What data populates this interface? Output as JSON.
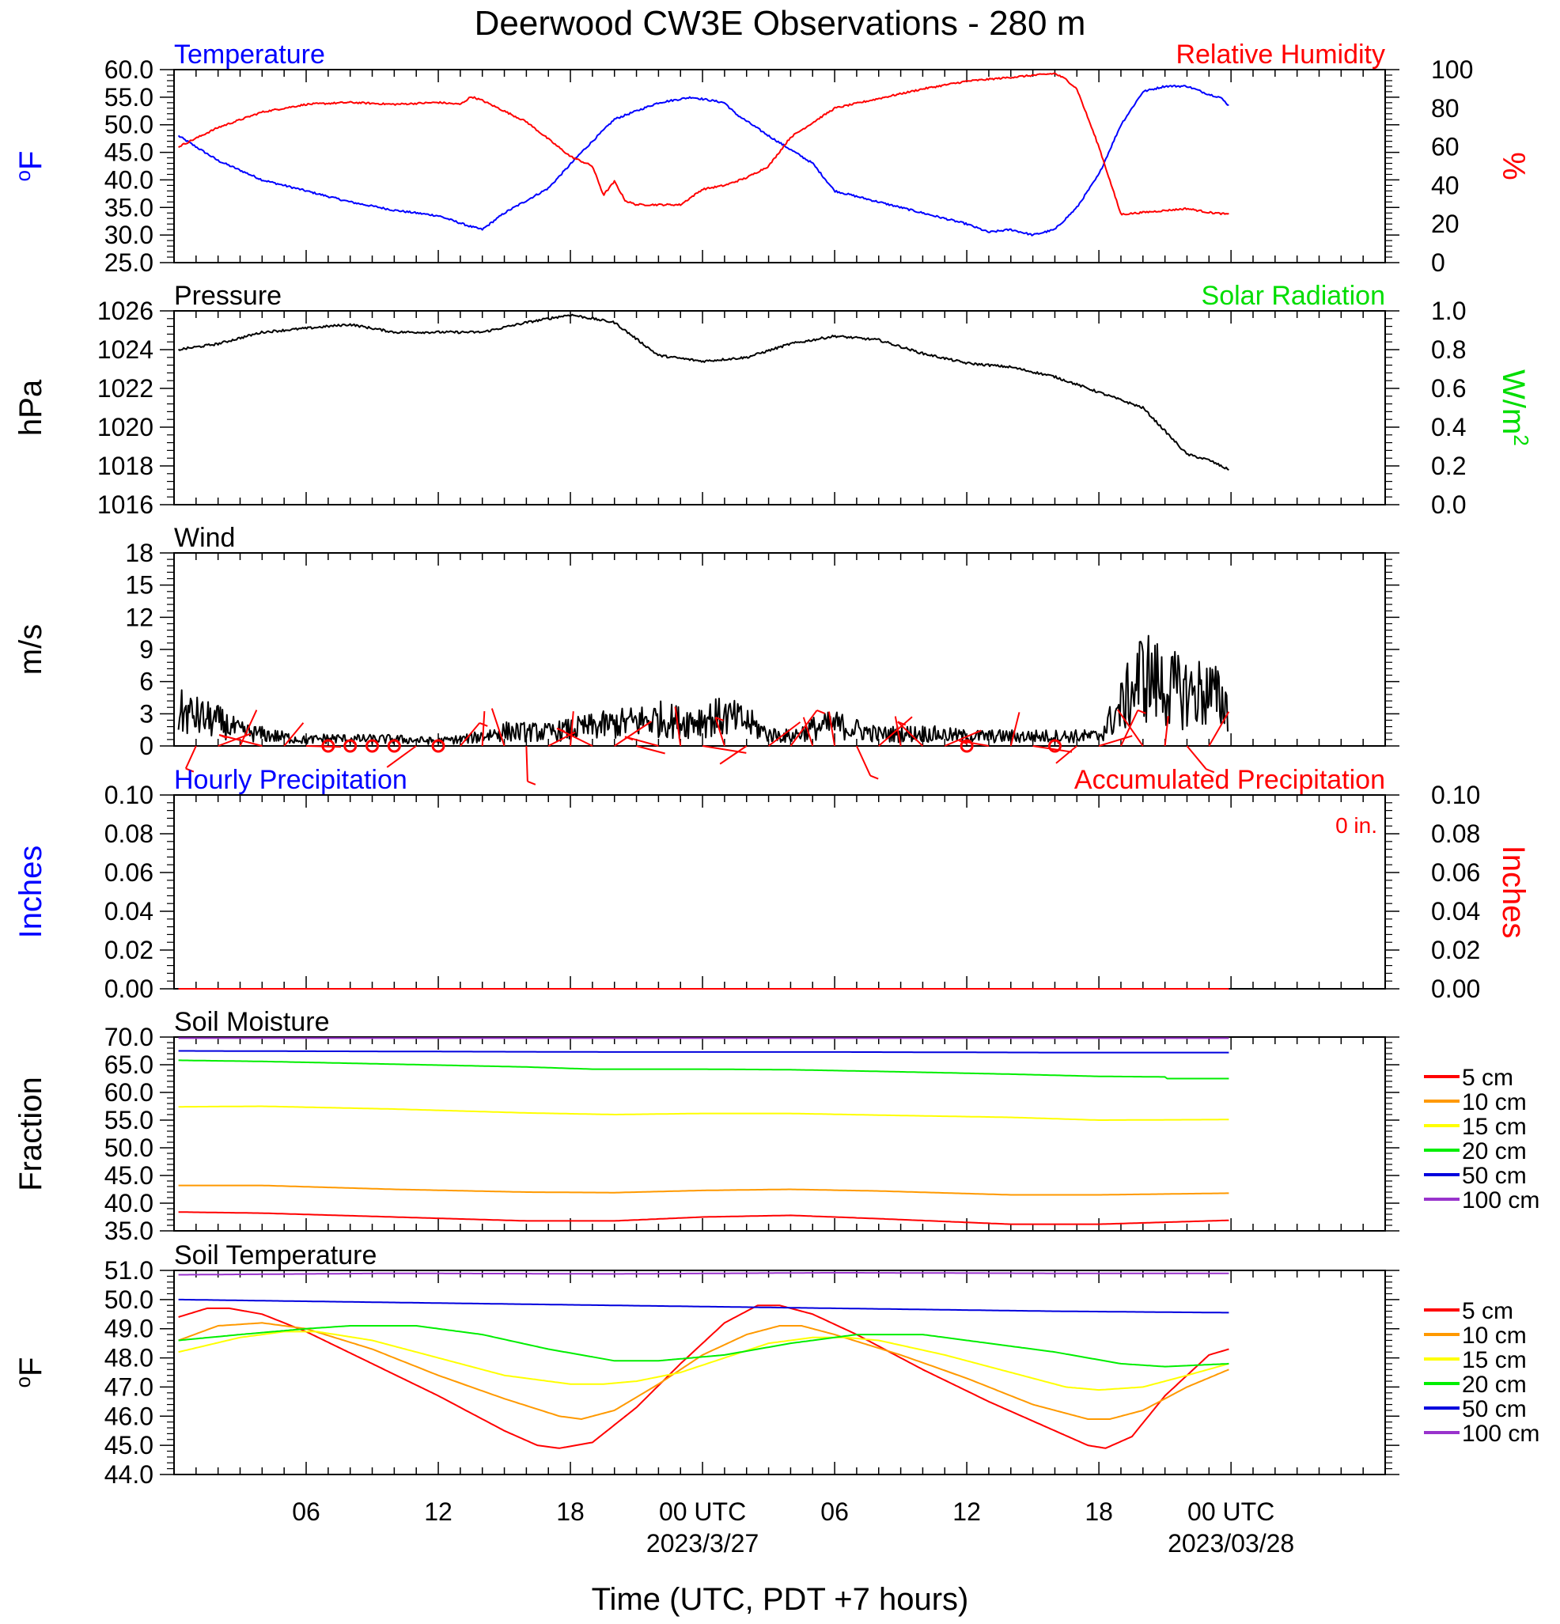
{
  "figure": {
    "title": "Deerwood CW3E Observations - 280 m",
    "xlabel": "Time (UTC, PDT +7 hours)",
    "x_range_hours": [
      -30,
      25
    ],
    "x_ticks": [
      {
        "hour": -24,
        "label": "06",
        "sub": ""
      },
      {
        "hour": -18,
        "label": "12",
        "sub": ""
      },
      {
        "hour": -12,
        "label": "18",
        "sub": ""
      },
      {
        "hour": -6,
        "label": "00 UTC",
        "sub": "2023/3/27"
      },
      {
        "hour": 0,
        "label": "06",
        "sub": ""
      },
      {
        "hour": 6,
        "label": "12",
        "sub": ""
      },
      {
        "hour": 12,
        "label": "18",
        "sub": ""
      },
      {
        "hour": 18,
        "label": "00 UTC",
        "sub": "2023/03/28"
      }
    ]
  },
  "colors": {
    "temperature": "#0000ff",
    "humidity": "#ff0000",
    "pressure": "#000000",
    "solar": "#00dd00",
    "wind": "#000000",
    "barb": "#ff0000",
    "depth_5cm": "#ff0000",
    "depth_10cm": "#ff9900",
    "depth_15cm": "#ffff00",
    "depth_20cm": "#00ee00",
    "depth_50cm": "#0000dd",
    "depth_100cm": "#9933cc"
  },
  "chart_data": [
    {
      "id": "temp_rh",
      "type": "line",
      "left_title": "Temperature",
      "right_title": "Relative Humidity",
      "ylabel_left": "°F",
      "ylabel_right": "%",
      "ylim_left": [
        25,
        60
      ],
      "yticks_left": [
        "25.0",
        "30.0",
        "35.0",
        "40.0",
        "45.0",
        "50.0",
        "55.0",
        "60.0"
      ],
      "ylim_right": [
        0,
        100
      ],
      "yticks_right": [
        "0",
        "20",
        "40",
        "60",
        "80",
        "100"
      ],
      "series": [
        {
          "name": "Temperature",
          "axis": "left",
          "color": "#0000ff",
          "x": [
            -29.8,
            -28,
            -26,
            -24,
            -22,
            -20,
            -18,
            -16.5,
            -16,
            -15,
            -13,
            -11.5,
            -10,
            -8,
            -6.5,
            -5,
            -4.5,
            -3,
            -1,
            0,
            2,
            4,
            6,
            7,
            8,
            9,
            10,
            11,
            12,
            13,
            14,
            15,
            16,
            17,
            17.5,
            17.9
          ],
          "y": [
            48,
            43.5,
            40,
            38,
            36,
            34.5,
            33.5,
            31.5,
            31,
            34,
            38.5,
            45,
            51,
            54,
            55,
            54,
            52,
            48,
            43,
            38,
            36,
            34,
            32,
            30.5,
            31,
            30,
            31,
            35,
            41,
            50,
            56,
            57,
            57,
            55.5,
            55,
            53.5
          ]
        },
        {
          "name": "Relative Humidity",
          "axis": "right",
          "color": "#ff0000",
          "x": [
            -29.8,
            -28,
            -26,
            -24,
            -22,
            -20,
            -18,
            -17,
            -16.5,
            -16,
            -14,
            -12,
            -11,
            -10.5,
            -10,
            -9.5,
            -9,
            -8,
            -7,
            -6,
            -5,
            -4,
            -3,
            -2,
            0,
            2,
            4,
            6,
            7,
            8,
            9,
            10,
            10.5,
            11,
            12,
            13,
            14,
            16,
            17,
            17.9
          ],
          "y": [
            60,
            70,
            78,
            82,
            83,
            82,
            83,
            82,
            86,
            84,
            73,
            55,
            50,
            35,
            42,
            32,
            30,
            30,
            30,
            38,
            40,
            44,
            50,
            65,
            80,
            85,
            90,
            94,
            95,
            96,
            97,
            98,
            95,
            90,
            60,
            25,
            26,
            28,
            26,
            25
          ]
        }
      ]
    },
    {
      "id": "pressure",
      "type": "line",
      "left_title": "Pressure",
      "right_title": "Solar Radiation",
      "ylabel_left": "hPa",
      "ylabel_right": "W/m",
      "ylabel_right_sup": "2",
      "ylim_left": [
        1016,
        1026
      ],
      "yticks_left": [
        "1016",
        "1018",
        "1020",
        "1022",
        "1024",
        "1026"
      ],
      "ylim_right": [
        0,
        1
      ],
      "yticks_right": [
        "0.0",
        "0.2",
        "0.4",
        "0.6",
        "0.8",
        "1.0"
      ],
      "series": [
        {
          "name": "Pressure",
          "axis": "left",
          "color": "#000000",
          "x": [
            -29.8,
            -28,
            -26,
            -24,
            -22,
            -20,
            -18,
            -16,
            -14,
            -12,
            -10,
            -8,
            -6,
            -4,
            -2,
            0,
            2,
            4,
            6,
            8,
            10,
            12,
            14,
            16,
            17,
            17.9
          ],
          "y": [
            1024,
            1024.3,
            1024.9,
            1025.1,
            1025.3,
            1024.9,
            1024.9,
            1024.9,
            1025.4,
            1025.8,
            1025.4,
            1023.7,
            1023.4,
            1023.6,
            1024.3,
            1024.7,
            1024.5,
            1023.8,
            1023.3,
            1023.1,
            1022.6,
            1021.8,
            1021.0,
            1018.6,
            1018.3,
            1017.8
          ]
        }
      ]
    },
    {
      "id": "wind",
      "type": "line",
      "left_title": "Wind",
      "ylabel_left": "m/s",
      "ylim_left": [
        0,
        20
      ],
      "yticks_left": [
        "0",
        "3",
        "6",
        "9",
        "12",
        "15",
        "18"
      ],
      "series": [
        {
          "name": "Wind",
          "axis": "left",
          "color": "#000000",
          "x": [
            -29.8,
            -28,
            -27,
            -26,
            -25,
            -24,
            -23,
            -22,
            -20,
            -18,
            -16.5,
            -15,
            -13,
            -11,
            -9,
            -8,
            -7,
            -6,
            -5,
            -4,
            -3,
            -2,
            -1,
            0,
            2,
            4,
            6,
            8,
            10,
            12,
            13,
            14,
            15,
            16,
            17,
            17.9
          ],
          "y": [
            3.5,
            2.5,
            1.5,
            1.2,
            0.9,
            0.6,
            0.8,
            0.7,
            0.7,
            0.5,
            0.8,
            1.5,
            1.4,
            2.0,
            2.5,
            2.8,
            2.5,
            2.8,
            3.0,
            2.5,
            1.2,
            1.0,
            1.8,
            2.2,
            1.2,
            1.3,
            1.0,
            1.0,
            1.0,
            1.0,
            4.0,
            7.5,
            6.0,
            5.5,
            5.5,
            4.0
          ]
        }
      ],
      "calm_circles_hours": [
        -23,
        -22,
        -21,
        -20,
        -18,
        6,
        10
      ]
    },
    {
      "id": "precip",
      "type": "line",
      "left_title": "Hourly Precipitation",
      "right_title": "Accumulated Precipitation",
      "annotation": "0 in.",
      "ylabel_left": "Inches",
      "ylabel_right": "Inches",
      "ylim_left": [
        0,
        0.1
      ],
      "yticks_left": [
        "0.00",
        "0.02",
        "0.04",
        "0.06",
        "0.08",
        "0.10"
      ],
      "ylim_right": [
        0,
        0.1
      ],
      "yticks_right": [
        "0.00",
        "0.02",
        "0.04",
        "0.06",
        "0.08",
        "0.10"
      ],
      "series": [
        {
          "name": "Hourly Precipitation",
          "axis": "left",
          "color": "#0000ff",
          "x": [
            -29.8,
            17.9
          ],
          "y": [
            0,
            0
          ]
        },
        {
          "name": "Accumulated Precipitation",
          "axis": "left",
          "color": "#ff0000",
          "x": [
            -29.8,
            17.9
          ],
          "y": [
            0,
            0
          ]
        }
      ]
    },
    {
      "id": "soil_moisture",
      "type": "line",
      "left_title": "Soil Moisture",
      "ylabel_left": "Fraction",
      "ylim_left": [
        35,
        70
      ],
      "yticks_left": [
        "35.0",
        "40.0",
        "45.0",
        "50.0",
        "55.0",
        "60.0",
        "65.0",
        "70.0"
      ],
      "legend": [
        "5 cm",
        "10 cm",
        "15 cm",
        "20 cm",
        "50 cm",
        "100 cm"
      ],
      "series": [
        {
          "name": "5 cm",
          "axis": "left",
          "color": "#ff0000",
          "x": [
            -29.8,
            -26,
            -20,
            -14,
            -10,
            -6,
            -2,
            2,
            8,
            12,
            17.9
          ],
          "y": [
            38.4,
            38.2,
            37.5,
            36.8,
            36.8,
            37.5,
            37.8,
            37.2,
            36.2,
            36.2,
            36.9
          ]
        },
        {
          "name": "10 cm",
          "axis": "left",
          "color": "#ff9900",
          "x": [
            -29.8,
            -26,
            -20,
            -14,
            -10,
            -6,
            -2,
            2,
            8,
            12,
            17.9
          ],
          "y": [
            43.2,
            43.2,
            42.5,
            42.0,
            41.9,
            42.3,
            42.5,
            42.2,
            41.5,
            41.5,
            41.8
          ]
        },
        {
          "name": "15 cm",
          "axis": "left",
          "color": "#ffff00",
          "x": [
            -29.8,
            -26,
            -20,
            -14,
            -10,
            -6,
            -2,
            2,
            8,
            12,
            17.9
          ],
          "y": [
            57.4,
            57.5,
            57.0,
            56.3,
            56.0,
            56.2,
            56.2,
            55.9,
            55.5,
            55.0,
            55.1
          ]
        },
        {
          "name": "20 cm",
          "axis": "left",
          "color": "#00ee00",
          "x": [
            -29.8,
            -26,
            -20,
            -14,
            -11,
            -6,
            -2,
            2,
            8,
            12,
            15,
            15.1,
            17.9
          ],
          "y": [
            65.8,
            65.6,
            65.1,
            64.6,
            64.2,
            64.2,
            64.1,
            63.8,
            63.3,
            62.9,
            62.8,
            62.5,
            62.5
          ]
        },
        {
          "name": "50 cm",
          "axis": "left",
          "color": "#0000dd",
          "x": [
            -29.8,
            -20,
            -10,
            0,
            10,
            17.9
          ],
          "y": [
            67.5,
            67.4,
            67.3,
            67.3,
            67.2,
            67.2
          ]
        },
        {
          "name": "100 cm",
          "axis": "left",
          "color": "#9933cc",
          "x": [
            -29.8,
            -20,
            -10,
            0,
            10,
            17.9
          ],
          "y": [
            69.8,
            69.8,
            69.8,
            69.8,
            69.8,
            69.8
          ]
        }
      ]
    },
    {
      "id": "soil_temperature",
      "type": "line",
      "left_title": "Soil Temperature",
      "ylabel_left": "°F",
      "ylim_left": [
        44,
        51
      ],
      "yticks_left": [
        "44.0",
        "45.0",
        "46.0",
        "47.0",
        "48.0",
        "49.0",
        "50.0",
        "51.0"
      ],
      "legend": [
        "5 cm",
        "10 cm",
        "15 cm",
        "20 cm",
        "50 cm",
        "100 cm"
      ],
      "series": [
        {
          "name": "5 cm",
          "axis": "left",
          "color": "#ff0000",
          "x": [
            -29.8,
            -28.5,
            -27.5,
            -26,
            -24,
            -21,
            -18,
            -15,
            -13.5,
            -12.5,
            -11,
            -9,
            -7,
            -5,
            -3.5,
            -2.5,
            -1,
            1,
            4,
            7,
            10,
            11.5,
            12.3,
            13.5,
            15,
            17,
            17.9
          ],
          "y": [
            49.4,
            49.7,
            49.7,
            49.5,
            48.9,
            47.8,
            46.7,
            45.5,
            45.0,
            44.9,
            45.1,
            46.3,
            47.8,
            49.2,
            49.8,
            49.8,
            49.5,
            48.8,
            47.6,
            46.5,
            45.5,
            45.0,
            44.9,
            45.3,
            46.7,
            48.1,
            48.3
          ]
        },
        {
          "name": "10 cm",
          "axis": "left",
          "color": "#ff9900",
          "x": [
            -29.8,
            -28,
            -26,
            -24,
            -21,
            -18,
            -15,
            -12.5,
            -11.5,
            -10,
            -8,
            -6,
            -4,
            -2.5,
            -1.5,
            0,
            3,
            6,
            9,
            11.5,
            12.5,
            14,
            16,
            17.9
          ],
          "y": [
            48.6,
            49.1,
            49.2,
            49.0,
            48.3,
            47.4,
            46.6,
            46.0,
            45.9,
            46.2,
            47.1,
            48.1,
            48.8,
            49.1,
            49.1,
            48.8,
            48.1,
            47.3,
            46.4,
            45.9,
            45.9,
            46.2,
            47.0,
            47.6
          ]
        },
        {
          "name": "15 cm",
          "axis": "left",
          "color": "#ffff00",
          "x": [
            -29.8,
            -27,
            -25,
            -23.5,
            -21,
            -18,
            -15,
            -12,
            -10.5,
            -9,
            -7,
            -5,
            -3,
            -1,
            0.5,
            2,
            5,
            8,
            10.5,
            12,
            14,
            16,
            17.9
          ],
          "y": [
            48.2,
            48.7,
            48.9,
            48.9,
            48.6,
            48.0,
            47.4,
            47.1,
            47.1,
            47.2,
            47.5,
            48.0,
            48.5,
            48.7,
            48.7,
            48.6,
            48.1,
            47.5,
            47.0,
            46.9,
            47.0,
            47.4,
            47.8
          ]
        },
        {
          "name": "20 cm",
          "axis": "left",
          "color": "#00ee00",
          "x": [
            -29.8,
            -27,
            -24,
            -22,
            -19,
            -16,
            -13,
            -10,
            -8,
            -5,
            -2,
            1,
            4,
            7,
            10,
            13,
            15,
            17.9
          ],
          "y": [
            48.6,
            48.8,
            49.0,
            49.1,
            49.1,
            48.8,
            48.3,
            47.9,
            47.9,
            48.1,
            48.5,
            48.8,
            48.8,
            48.5,
            48.2,
            47.8,
            47.7,
            47.8
          ]
        },
        {
          "name": "50 cm",
          "axis": "left",
          "color": "#0000dd",
          "x": [
            -29.8,
            -20,
            -10,
            0,
            10,
            17.9
          ],
          "y": [
            50.0,
            49.9,
            49.8,
            49.7,
            49.6,
            49.55
          ]
        },
        {
          "name": "100 cm",
          "axis": "left",
          "color": "#9933cc",
          "x": [
            -29.8,
            -20,
            -10,
            0,
            10,
            17.9
          ],
          "y": [
            50.85,
            50.9,
            50.88,
            50.92,
            50.9,
            50.9
          ]
        }
      ]
    }
  ]
}
